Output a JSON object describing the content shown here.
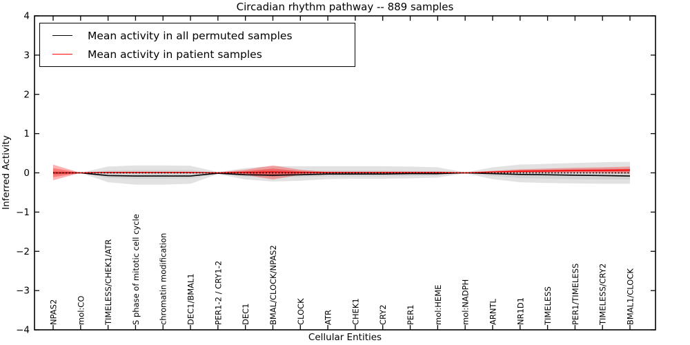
{
  "figure": {
    "title": "Circadian rhythm pathway -- 889 samples",
    "xlabel": "Cellular Entities",
    "ylabel": "Inferred Activity"
  },
  "legend": {
    "items": [
      {
        "label": "Mean activity in all permuted samples",
        "color": "#000000"
      },
      {
        "label": "Mean activity in patient samples",
        "color": "#ff0000"
      }
    ]
  },
  "chart_data": {
    "type": "line",
    "title": "Circadian rhythm pathway -- 889 samples",
    "xlabel": "Cellular Entities",
    "ylabel": "Inferred Activity",
    "ylim": [
      -4,
      4
    ],
    "ytick_labels": [
      "4",
      "3",
      "2",
      "1",
      "0",
      "−1",
      "−2",
      "−3",
      "−4"
    ],
    "grid": false,
    "legend_position": "upper-left",
    "categories": [
      "NPAS2",
      "mol:CO",
      "TIMELESS/CHEK1/ATR",
      "S phase of mitotic cell cycle",
      "chromatin modification",
      "DEC1/BMAL1",
      "PER1-2 / CRY1-2",
      "DEC1",
      "BMAL/CLOCK/NPAS2",
      "CLOCK",
      "ATR",
      "CHEK1",
      "CRY2",
      "PER1",
      "mol:HEME",
      "mol:NADPH",
      "ARNTL",
      "NR1D1",
      "TIMELESS",
      "PER1/TIMELESS",
      "TIMELESS/CRY2",
      "BMAL1/CLOCK"
    ],
    "zero_line": {
      "value": 0,
      "style": "dotted",
      "color": "#000000"
    },
    "series": [
      {
        "name": "Mean activity in all permuted samples",
        "color": "#000000",
        "band_color": "#7a7a7a",
        "band_outer_opacity": 0.22,
        "band_inner_opacity": 0.14,
        "values": [
          0.0,
          0.0,
          -0.07,
          -0.08,
          -0.08,
          -0.08,
          -0.01,
          -0.05,
          -0.06,
          -0.05,
          -0.03,
          -0.03,
          -0.03,
          -0.02,
          -0.02,
          0.0,
          -0.02,
          -0.04,
          -0.05,
          -0.06,
          -0.07,
          -0.08
        ],
        "band_outer_upper": [
          0.05,
          0.0,
          0.16,
          0.19,
          0.19,
          0.18,
          0.02,
          0.12,
          0.17,
          0.17,
          0.17,
          0.17,
          0.17,
          0.16,
          0.14,
          0.01,
          0.14,
          0.21,
          0.23,
          0.25,
          0.27,
          0.28
        ],
        "band_outer_lower": [
          -0.05,
          0.0,
          -0.24,
          -0.3,
          -0.3,
          -0.28,
          -0.03,
          -0.17,
          -0.22,
          -0.2,
          -0.16,
          -0.15,
          -0.15,
          -0.14,
          -0.12,
          -0.01,
          -0.16,
          -0.24,
          -0.26,
          -0.27,
          -0.28,
          -0.28
        ],
        "band_inner_upper": [
          0.02,
          0.0,
          0.06,
          0.07,
          0.07,
          0.07,
          0.01,
          0.05,
          0.07,
          0.06,
          0.06,
          0.06,
          0.06,
          0.05,
          0.05,
          0.0,
          0.05,
          0.08,
          0.09,
          0.1,
          0.11,
          0.11
        ],
        "band_inner_lower": [
          -0.02,
          0.0,
          -0.13,
          -0.15,
          -0.15,
          -0.14,
          -0.02,
          -0.1,
          -0.12,
          -0.11,
          -0.09,
          -0.09,
          -0.09,
          -0.08,
          -0.07,
          0.0,
          -0.08,
          -0.13,
          -0.15,
          -0.16,
          -0.17,
          -0.17
        ]
      },
      {
        "name": "Mean activity in patient samples",
        "color": "#ff0000",
        "band_color": "#ff0000",
        "band_outer_opacity": 0.3,
        "band_inner_opacity": 0.32,
        "values": [
          0.0,
          0.0,
          0.01,
          0.01,
          0.01,
          0.01,
          0.0,
          0.01,
          0.02,
          0.01,
          0.01,
          0.01,
          0.01,
          0.01,
          0.01,
          0.0,
          0.02,
          0.04,
          0.05,
          0.06,
          0.06,
          0.07
        ],
        "band_outer_upper": [
          0.21,
          0.0,
          0.02,
          0.02,
          0.02,
          0.02,
          0.01,
          0.08,
          0.19,
          0.08,
          0.02,
          0.02,
          0.02,
          0.02,
          0.02,
          0.01,
          0.05,
          0.09,
          0.11,
          0.13,
          0.14,
          0.16
        ],
        "band_outer_lower": [
          -0.19,
          0.0,
          -0.01,
          -0.01,
          -0.01,
          -0.01,
          -0.01,
          -0.05,
          -0.17,
          -0.05,
          -0.01,
          -0.01,
          -0.01,
          -0.01,
          -0.01,
          -0.01,
          0.0,
          0.0,
          0.0,
          0.0,
          -0.01,
          -0.02
        ],
        "band_inner_upper": [
          0.12,
          0.0,
          0.01,
          0.01,
          0.01,
          0.01,
          0.01,
          0.04,
          0.11,
          0.04,
          0.01,
          0.01,
          0.01,
          0.01,
          0.01,
          0.0,
          0.03,
          0.06,
          0.07,
          0.08,
          0.09,
          0.1
        ],
        "band_inner_lower": [
          -0.11,
          0.0,
          0.0,
          0.0,
          0.0,
          0.0,
          0.0,
          -0.02,
          -0.09,
          -0.02,
          0.0,
          0.0,
          0.0,
          0.0,
          0.0,
          0.0,
          0.01,
          0.02,
          0.02,
          0.03,
          0.03,
          0.03
        ]
      }
    ]
  }
}
